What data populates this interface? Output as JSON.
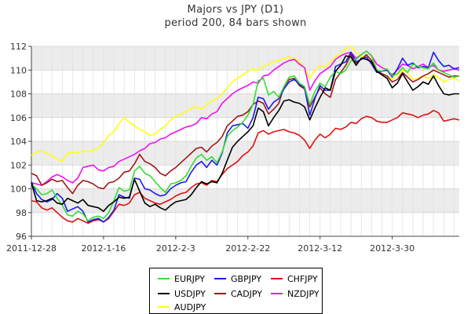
{
  "chart_data": {
    "type": "line",
    "title": "Majors vs JPY (D1)",
    "subtitle": "period 200, 84 bars shown",
    "ylim": [
      96,
      112
    ],
    "y_ticks": [
      96,
      98,
      100,
      102,
      104,
      106,
      108,
      110,
      112
    ],
    "x_ticks": [
      "2011-12-28",
      "2012-1-16",
      "2012-2-3",
      "2012-2-22",
      "2012-3-12",
      "2012-3-30"
    ],
    "x_tick_index": [
      0,
      14,
      28,
      42,
      56,
      70
    ],
    "grid": true,
    "legend_placement": "bottom-center",
    "series": [
      {
        "name": "EURJPY",
        "color": "#33dd33",
        "values": [
          100.4,
          100.0,
          99.5,
          99.6,
          99.9,
          99.2,
          98.6,
          97.8,
          97.7,
          98.1,
          97.9,
          97.3,
          97.6,
          97.7,
          97.5,
          98.0,
          99.0,
          100.1,
          99.8,
          99.9,
          101.5,
          101.9,
          101.3,
          101.1,
          100.6,
          100.1,
          99.7,
          100.4,
          100.5,
          100.7,
          101.1,
          101.9,
          102.6,
          102.9,
          102.4,
          102.7,
          102.2,
          103.1,
          104.4,
          104.9,
          105.2,
          105.6,
          106.2,
          107.1,
          109.1,
          109.3,
          107.9,
          108.2,
          107.7,
          108.6,
          109.4,
          109.5,
          108.9,
          108.6,
          107.1,
          108.2,
          108.9,
          108.6,
          109.4,
          109.9,
          109.7,
          110.0,
          110.8,
          110.9,
          111.3,
          111.6,
          111.2,
          110.0,
          109.9,
          110.1,
          109.5,
          109.7,
          110.2,
          109.8,
          110.5,
          110.3,
          110.2,
          110.1,
          110.6,
          110.0,
          109.8,
          109.6,
          109.4,
          109.5
        ]
      },
      {
        "name": "GBPJPY",
        "color": "#1a1aee",
        "values": [
          100.6,
          99.6,
          99.1,
          98.9,
          99.1,
          99.6,
          99.2,
          98.1,
          98.3,
          98.5,
          98.1,
          97.2,
          97.4,
          97.5,
          97.2,
          97.6,
          98.2,
          99.5,
          99.3,
          99.2,
          100.9,
          100.8,
          100.0,
          99.9,
          99.6,
          99.4,
          99.5,
          100.0,
          100.3,
          100.5,
          100.6,
          101.4,
          102.0,
          102.3,
          101.8,
          102.4,
          102.0,
          103.0,
          104.7,
          105.3,
          105.4,
          105.5,
          105.1,
          106.0,
          107.7,
          107.6,
          106.7,
          107.3,
          107.6,
          108.4,
          109.0,
          109.2,
          108.8,
          108.5,
          106.2,
          107.6,
          108.7,
          108.3,
          108.3,
          110.3,
          110.5,
          110.7,
          111.5,
          110.7,
          110.9,
          111.1,
          110.5,
          109.8,
          109.9,
          110.0,
          109.4,
          110.1,
          111.0,
          110.4,
          110.6,
          110.2,
          110.3,
          110.2,
          111.5,
          110.8,
          110.3,
          110.4,
          110.1,
          110.2
        ]
      },
      {
        "name": "CHFJPY",
        "color": "#e01010",
        "values": [
          99.0,
          98.9,
          98.4,
          98.2,
          98.4,
          98.0,
          97.6,
          97.3,
          97.2,
          97.5,
          97.3,
          97.1,
          97.3,
          97.4,
          97.2,
          97.5,
          98.1,
          98.7,
          98.6,
          98.8,
          99.5,
          99.7,
          99.2,
          99.0,
          98.8,
          98.7,
          98.9,
          99.1,
          99.4,
          99.6,
          99.7,
          100.1,
          100.4,
          100.5,
          100.3,
          100.7,
          100.6,
          101.2,
          101.7,
          102.0,
          102.3,
          102.8,
          103.1,
          103.6,
          104.7,
          104.9,
          104.6,
          104.8,
          104.9,
          105.0,
          104.8,
          104.7,
          104.5,
          104.1,
          103.4,
          104.1,
          104.6,
          104.3,
          104.6,
          105.1,
          105.0,
          105.2,
          105.6,
          105.5,
          105.9,
          106.1,
          106.0,
          105.7,
          105.6,
          105.6,
          105.8,
          106.0,
          106.4,
          106.3,
          106.2,
          106.0,
          106.2,
          106.3,
          106.6,
          106.4,
          105.7,
          105.8,
          105.9,
          105.8
        ]
      },
      {
        "name": "USDJPY",
        "color": "#000000",
        "values": [
          100.5,
          99.0,
          98.9,
          99.0,
          99.2,
          98.8,
          98.7,
          99.2,
          99.0,
          98.8,
          99.1,
          98.6,
          98.5,
          98.4,
          98.1,
          98.6,
          98.9,
          99.3,
          99.2,
          99.3,
          100.8,
          99.8,
          98.8,
          98.5,
          98.7,
          98.4,
          98.2,
          98.6,
          98.9,
          99.0,
          99.1,
          99.5,
          100.1,
          100.6,
          100.4,
          100.6,
          100.5,
          101.3,
          102.4,
          103.5,
          104.0,
          104.4,
          104.8,
          105.3,
          106.8,
          106.5,
          105.3,
          106.0,
          106.6,
          107.4,
          107.5,
          107.3,
          107.2,
          106.9,
          105.8,
          106.8,
          107.7,
          108.5,
          108.3,
          109.9,
          110.4,
          111.2,
          111.1,
          110.4,
          111.0,
          110.9,
          110.7,
          109.9,
          109.6,
          109.3,
          108.5,
          108.9,
          109.7,
          109.0,
          108.3,
          108.6,
          109.0,
          108.8,
          109.5,
          108.7,
          108.0,
          107.9,
          108.0,
          108.0
        ]
      },
      {
        "name": "CADJPY",
        "color": "#a01818",
        "values": [
          101.3,
          101.1,
          100.3,
          100.5,
          100.8,
          100.6,
          100.7,
          100.1,
          99.6,
          100.3,
          100.7,
          100.6,
          100.4,
          100.1,
          100.0,
          100.5,
          100.6,
          100.9,
          101.4,
          101.5,
          102.1,
          102.9,
          102.3,
          102.1,
          101.8,
          101.3,
          101.1,
          101.5,
          101.8,
          102.2,
          102.6,
          103.0,
          103.4,
          103.5,
          103.1,
          103.6,
          103.9,
          104.4,
          105.3,
          105.7,
          106.1,
          106.2,
          106.5,
          107.1,
          107.4,
          107.2,
          106.3,
          106.7,
          107.2,
          108.6,
          109.2,
          109.3,
          108.7,
          108.4,
          106.9,
          107.7,
          108.5,
          108.0,
          107.7,
          109.2,
          109.8,
          110.4,
          111.3,
          110.6,
          110.9,
          111.3,
          110.8,
          109.9,
          109.7,
          109.5,
          109.0,
          109.2,
          109.8,
          109.4,
          109.0,
          109.2,
          109.5,
          109.7,
          110.0,
          109.8,
          109.6,
          109.4,
          109.5,
          109.5
        ]
      },
      {
        "name": "NZDJPY",
        "color": "#ee11ee",
        "values": [
          100.5,
          100.4,
          100.3,
          100.6,
          101.0,
          101.2,
          101.0,
          100.7,
          100.5,
          100.9,
          101.8,
          101.9,
          102.0,
          101.6,
          101.5,
          101.8,
          101.9,
          102.3,
          102.5,
          102.7,
          102.9,
          103.2,
          103.4,
          103.8,
          103.9,
          104.2,
          104.3,
          104.6,
          104.8,
          105.0,
          105.2,
          105.3,
          105.5,
          106.0,
          105.9,
          106.3,
          106.5,
          107.2,
          107.6,
          108.0,
          108.3,
          108.5,
          108.7,
          109.0,
          108.9,
          109.5,
          109.6,
          110.0,
          110.3,
          110.6,
          110.8,
          110.9,
          110.5,
          110.2,
          108.3,
          109.1,
          109.7,
          110.0,
          110.3,
          110.9,
          111.2,
          111.4,
          111.5,
          111.0,
          111.3,
          111.6,
          111.2,
          110.5,
          110.2,
          110.0,
          109.6,
          110.0,
          110.5,
          110.4,
          110.1,
          110.3,
          110.5,
          110.2,
          110.4,
          110.0,
          109.9,
          110.0,
          110.1,
          110.0
        ]
      },
      {
        "name": "AUDJPY",
        "color": "#ffff11",
        "values": [
          102.8,
          103.1,
          103.2,
          103.0,
          102.8,
          102.5,
          102.3,
          103.0,
          103.1,
          103.0,
          103.2,
          103.1,
          103.3,
          103.4,
          103.9,
          104.5,
          104.8,
          105.5,
          106.0,
          105.6,
          105.3,
          105.0,
          104.8,
          104.5,
          104.6,
          105.0,
          105.3,
          105.8,
          106.1,
          106.3,
          106.5,
          106.8,
          106.9,
          106.7,
          107.1,
          107.4,
          107.6,
          108.0,
          108.5,
          109.0,
          109.3,
          109.6,
          109.9,
          110.1,
          110.0,
          110.3,
          110.5,
          110.7,
          110.8,
          111.0,
          111.1,
          111.0,
          110.7,
          110.2,
          109.3,
          110.0,
          110.4,
          110.2,
          110.7,
          111.1,
          111.4,
          111.8,
          112.0,
          111.5,
          111.2,
          111.0,
          110.6,
          109.9,
          109.7,
          109.5,
          109.2,
          109.6,
          110.0,
          109.8,
          109.2,
          109.3,
          109.5,
          109.3,
          109.6,
          109.4,
          109.0,
          109.2,
          109.3,
          109.1
        ]
      }
    ]
  }
}
